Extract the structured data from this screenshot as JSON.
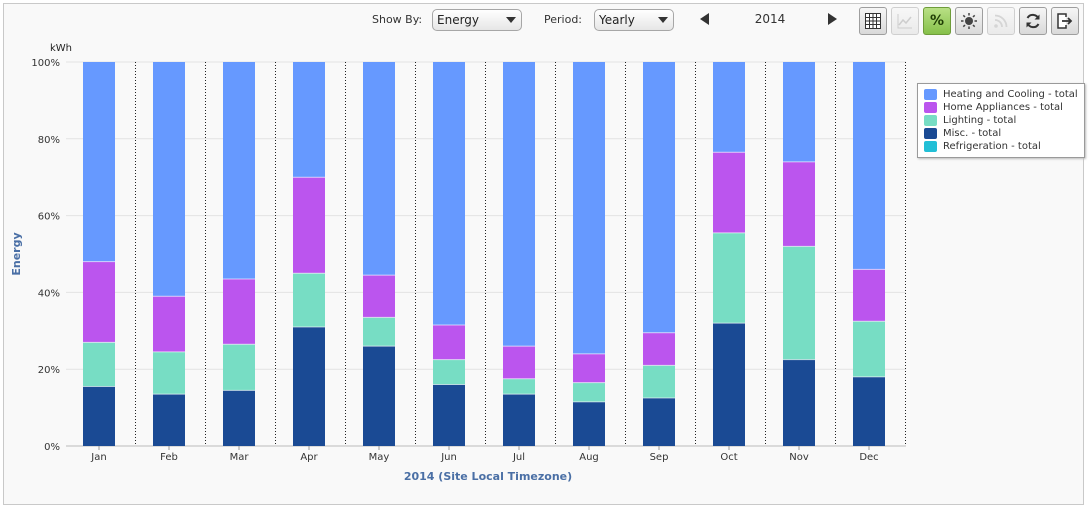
{
  "toolbar": {
    "show_by_label": "Show By:",
    "show_by_value": "Energy",
    "period_label": "Period:",
    "period_value": "Yearly",
    "year": "2014",
    "percent_label": "%"
  },
  "colors": {
    "heating": "#6699ff",
    "appliances": "#bb55ee",
    "lighting": "#77ddc4",
    "misc": "#1a4a94",
    "refrigeration": "#22bfd6",
    "axis_title": "#4a6fa5"
  },
  "chart_data": {
    "type": "bar",
    "stacked": true,
    "percent": true,
    "unit": "kWh",
    "ylabel": "Energy",
    "xlabel": "2014 (Site Local Timezone)",
    "ylim": [
      0,
      100
    ],
    "yticks": [
      "0%",
      "20%",
      "40%",
      "60%",
      "80%",
      "100%"
    ],
    "categories": [
      "Jan",
      "Feb",
      "Mar",
      "Apr",
      "May",
      "Jun",
      "Jul",
      "Aug",
      "Sep",
      "Oct",
      "Nov",
      "Dec"
    ],
    "series": [
      {
        "name": "Misc. - total",
        "color_key": "misc",
        "values": [
          15.5,
          13.5,
          14.5,
          31,
          26,
          16,
          13.5,
          11.5,
          12.5,
          32,
          22.5,
          18
        ]
      },
      {
        "name": "Lighting - total",
        "color_key": "lighting",
        "values": [
          11.5,
          11,
          12,
          14,
          7.5,
          6.5,
          4,
          5,
          8.5,
          23.5,
          29.5,
          14.5
        ]
      },
      {
        "name": "Home Appliances - total",
        "color_key": "appliances",
        "values": [
          21,
          14.5,
          17,
          25,
          11,
          9,
          8.5,
          7.5,
          8.5,
          21,
          22,
          13.5
        ]
      },
      {
        "name": "Refrigeration - total",
        "color_key": "refrigeration",
        "values": [
          0,
          0,
          0,
          0,
          0,
          0,
          0,
          0,
          0,
          0,
          0,
          0
        ]
      },
      {
        "name": "Heating and Cooling - total",
        "color_key": "heating",
        "values": [
          52,
          61,
          56.5,
          30,
          55.5,
          68.5,
          74,
          76,
          70.5,
          23.5,
          26,
          54
        ]
      }
    ],
    "legend": {
      "position": "right",
      "order": [
        "Heating and Cooling - total",
        "Home Appliances - total",
        "Lighting - total",
        "Misc. - total",
        "Refrigeration - total"
      ]
    }
  }
}
